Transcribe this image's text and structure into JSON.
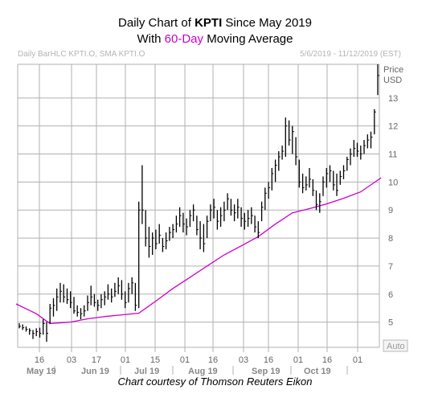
{
  "header": {
    "title_prefix": "Daily Chart of ",
    "ticker": "KPTI",
    "title_suffix": " Since May 2019",
    "subtitle_prefix": "With ",
    "subtitle_highlight": "60-Day",
    "subtitle_suffix": " Moving Average",
    "chart_label": "Daily BarHLC KPTI.O, SMA KPTI.O",
    "date_range": "5/6/2019 - 11/12/2019 (EST)"
  },
  "footer": {
    "credit": "Chart courtesy of Thomson Reuters Eikon"
  },
  "chart_data": {
    "type": "ohlc-bar",
    "title": "Daily Chart of KPTI Since May 2019",
    "subtitle": "With 60-Day Moving Average",
    "y_axis": {
      "title_line1": "Price",
      "title_line2": "USD",
      "ticks": [
        5,
        6,
        7,
        8,
        9,
        10,
        11,
        12,
        13
      ],
      "ylim": [
        4.1,
        14.2
      ],
      "scale_button": "Auto"
    },
    "x_axis": {
      "day_ticks": [
        "16",
        "03",
        "17",
        "01",
        "15",
        "01",
        "16",
        "03",
        "16",
        "01",
        "16",
        "01"
      ],
      "month_labels": [
        "May 19",
        "Jun 19",
        "Jul 19",
        "Aug 19",
        "Sep 19",
        "Oct 19"
      ]
    },
    "grid": true,
    "colors": {
      "bars": "#000000",
      "sma": "#cc00cc",
      "grid": "#b0b0b0",
      "axis_text": "#666666"
    },
    "series": [
      {
        "name": "KPTI.O Daily BarHLC",
        "type": "hlc-bar",
        "bars": [
          [
            4.96,
            4.78,
            4.85
          ],
          [
            4.92,
            4.72,
            4.8
          ],
          [
            4.85,
            4.66,
            4.74
          ],
          [
            4.78,
            4.55,
            4.7
          ],
          [
            4.72,
            4.4,
            4.6
          ],
          [
            4.78,
            4.5,
            4.66
          ],
          [
            4.8,
            4.45,
            4.6
          ],
          [
            5.1,
            4.55,
            4.95
          ],
          [
            5.0,
            4.3,
            4.6
          ],
          [
            5.65,
            4.95,
            5.5
          ],
          [
            5.85,
            5.2,
            5.6
          ],
          [
            6.2,
            5.4,
            5.9
          ],
          [
            6.4,
            5.7,
            6.1
          ],
          [
            6.35,
            5.7,
            5.9
          ],
          [
            6.2,
            5.65,
            5.8
          ],
          [
            6.1,
            5.5,
            5.7
          ],
          [
            5.9,
            5.3,
            5.4
          ],
          [
            5.6,
            5.2,
            5.35
          ],
          [
            5.5,
            5.1,
            5.3
          ],
          [
            5.6,
            5.2,
            5.4
          ],
          [
            5.95,
            5.4,
            5.7
          ],
          [
            6.3,
            5.6,
            5.9
          ],
          [
            6.0,
            5.55,
            5.7
          ],
          [
            5.8,
            5.4,
            5.6
          ],
          [
            6.0,
            5.5,
            5.8
          ],
          [
            6.1,
            5.6,
            5.9
          ],
          [
            6.35,
            5.8,
            6.0
          ],
          [
            6.2,
            5.7,
            5.9
          ],
          [
            6.4,
            5.9,
            6.1
          ],
          [
            6.6,
            6.0,
            6.3
          ],
          [
            6.5,
            5.8,
            6.0
          ],
          [
            6.1,
            5.5,
            5.7
          ],
          [
            6.4,
            5.7,
            6.2
          ],
          [
            6.6,
            6.0,
            6.4
          ],
          [
            6.4,
            5.4,
            5.6
          ],
          [
            9.3,
            5.5,
            9.0
          ],
          [
            10.6,
            8.5,
            9.0
          ],
          [
            9.0,
            7.7,
            8.0
          ],
          [
            8.4,
            7.3,
            7.7
          ],
          [
            8.2,
            7.4,
            8.0
          ],
          [
            8.3,
            7.6,
            7.8
          ],
          [
            8.5,
            7.8,
            8.1
          ],
          [
            8.0,
            7.5,
            7.7
          ],
          [
            8.2,
            7.6,
            7.9
          ],
          [
            8.4,
            7.9,
            8.2
          ],
          [
            8.5,
            8.0,
            8.3
          ],
          [
            8.8,
            8.2,
            8.5
          ],
          [
            9.1,
            8.4,
            8.8
          ],
          [
            8.9,
            8.2,
            8.5
          ],
          [
            8.7,
            8.1,
            8.4
          ],
          [
            9.0,
            8.4,
            8.8
          ],
          [
            9.2,
            8.6,
            9.0
          ],
          [
            8.8,
            8.1,
            8.3
          ],
          [
            8.6,
            7.6,
            8.0
          ],
          [
            8.5,
            7.5,
            7.8
          ],
          [
            8.8,
            8.0,
            8.6
          ],
          [
            9.2,
            8.6,
            9.0
          ],
          [
            9.4,
            8.7,
            9.1
          ],
          [
            9.0,
            8.3,
            8.6
          ],
          [
            9.1,
            8.4,
            8.8
          ],
          [
            9.3,
            8.6,
            9.0
          ],
          [
            9.6,
            9.0,
            9.4
          ],
          [
            9.4,
            8.8,
            9.0
          ],
          [
            9.2,
            8.6,
            8.9
          ],
          [
            9.4,
            8.7,
            9.1
          ],
          [
            9.1,
            8.4,
            8.7
          ],
          [
            8.9,
            8.3,
            8.6
          ],
          [
            9.0,
            8.4,
            8.7
          ],
          [
            9.1,
            8.5,
            8.8
          ],
          [
            8.8,
            8.2,
            8.4
          ],
          [
            8.6,
            8.0,
            8.2
          ],
          [
            9.3,
            8.6,
            9.1
          ],
          [
            9.8,
            9.0,
            9.6
          ],
          [
            10.0,
            9.4,
            9.8
          ],
          [
            10.5,
            9.7,
            10.3
          ],
          [
            10.8,
            10.0,
            10.6
          ],
          [
            11.1,
            10.4,
            10.9
          ],
          [
            11.3,
            10.8,
            11.1
          ],
          [
            12.3,
            10.9,
            12.0
          ],
          [
            12.2,
            11.3,
            11.5
          ],
          [
            12.0,
            11.0,
            11.8
          ],
          [
            11.6,
            10.6,
            10.9
          ],
          [
            10.8,
            9.8,
            10.0
          ],
          [
            10.3,
            9.6,
            9.8
          ],
          [
            10.2,
            9.7,
            9.9
          ],
          [
            10.5,
            9.8,
            10.1
          ],
          [
            10.1,
            9.5,
            9.7
          ],
          [
            9.7,
            9.0,
            9.2
          ],
          [
            9.6,
            8.9,
            9.3
          ],
          [
            10.2,
            9.5,
            10.0
          ],
          [
            10.5,
            9.8,
            10.3
          ],
          [
            10.6,
            10.0,
            10.4
          ],
          [
            10.4,
            9.7,
            9.9
          ],
          [
            10.3,
            9.5,
            9.7
          ],
          [
            10.4,
            9.9,
            10.2
          ],
          [
            10.6,
            10.1,
            10.4
          ],
          [
            10.9,
            10.4,
            10.8
          ],
          [
            11.2,
            10.6,
            11.0
          ],
          [
            11.5,
            10.9,
            11.2
          ],
          [
            11.4,
            10.9,
            11.1
          ],
          [
            11.3,
            10.8,
            11.0
          ],
          [
            11.5,
            11.0,
            11.3
          ],
          [
            11.7,
            11.2,
            11.5
          ],
          [
            11.8,
            11.2,
            11.6
          ],
          [
            12.6,
            11.7,
            12.5
          ],
          [
            14.2,
            13.1,
            13.8
          ]
        ]
      },
      {
        "name": "SMA KPTI.O (60)",
        "type": "line",
        "points": [
          [
            0,
            5.65
          ],
          [
            5,
            5.3
          ],
          [
            9,
            4.95
          ],
          [
            15,
            5.0
          ],
          [
            20,
            5.12
          ],
          [
            25,
            5.2
          ],
          [
            30,
            5.26
          ],
          [
            35,
            5.32
          ],
          [
            40,
            5.75
          ],
          [
            45,
            6.2
          ],
          [
            50,
            6.6
          ],
          [
            55,
            7.0
          ],
          [
            60,
            7.4
          ],
          [
            65,
            7.72
          ],
          [
            70,
            8.05
          ],
          [
            75,
            8.5
          ],
          [
            80,
            8.9
          ],
          [
            85,
            9.05
          ],
          [
            90,
            9.22
          ],
          [
            95,
            9.42
          ],
          [
            100,
            9.65
          ],
          [
            106,
            10.15
          ]
        ]
      }
    ]
  }
}
